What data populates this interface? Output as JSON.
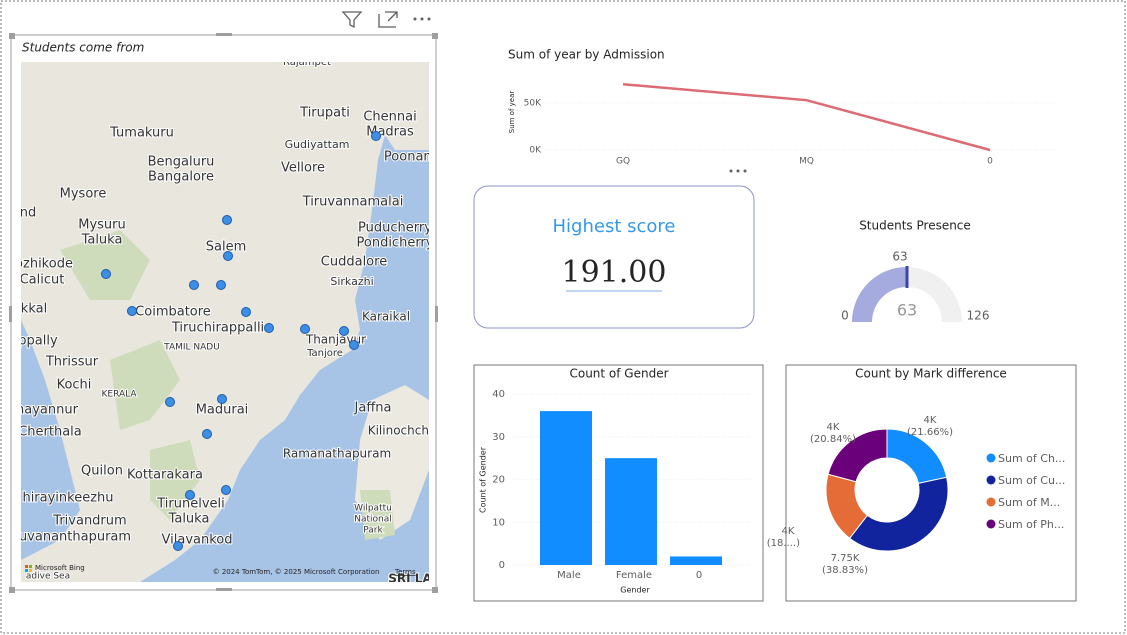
{
  "map": {
    "title": "Students come from",
    "labels": [
      "Rajampet",
      "Tirupati",
      "Chennai",
      "Madras",
      "Poonam",
      "Tumakuru",
      "Gudiyattam",
      "Bengaluru",
      "Bangalore",
      "Vellore",
      "Mysore",
      "Tiruvannamalai",
      "nd",
      "Mysuru",
      "Taluka",
      "Puducherry",
      "Salem",
      "Pondicherry",
      "ozhikode",
      "Cuddalore",
      "Calicut",
      "Sirkazhi",
      "Coimbatore",
      "kkal",
      "Karaikal",
      "Tiruchirappalli",
      "Thanjavur",
      "ppally",
      "TAMIL NADU",
      "Tanjore",
      "Thrissur",
      "Kochi",
      "KERALA",
      "nayannur",
      "Madurai",
      "Jaffna",
      "Cherthala",
      "Kilinochchi",
      "Ramanathapuram",
      "Quilon",
      "Kottarakara",
      "hirayinkeezhu",
      "Tirunelveli",
      "Taluka",
      "Wilpattu",
      "National",
      "Park",
      "Trivandrum",
      "uvananthapuram",
      "Vilavankod",
      "adive Sea",
      "SRI LA"
    ],
    "logo": "Microsoft Bing",
    "attribution": "© 2024 TomTom, © 2025 Microsoft Corporation",
    "terms": "Terms"
  },
  "card": {
    "label": "Highest score",
    "value": "191.00"
  },
  "chart_data": [
    {
      "type": "line",
      "title": "Sum of year by Admission",
      "y_label": "Sum of year",
      "categories": [
        "GQ",
        "MQ",
        "0"
      ],
      "values": [
        70000,
        53000,
        0
      ],
      "color": "#dc6b74",
      "ylim": [
        0,
        75000
      ],
      "yticks": [
        {
          "value": 0,
          "label": "0K"
        },
        {
          "value": 50000,
          "label": "50K"
        }
      ]
    },
    {
      "type": "gauge",
      "title": "Students Presence",
      "value": 63,
      "min": 0,
      "max": 126,
      "target": 63,
      "color": "#a5aadf",
      "target_color": "#3b46a8"
    },
    {
      "type": "bar",
      "title": "Count of Gender",
      "x_label": "Gender",
      "y_label": "Count of Gender",
      "categories": [
        "Male",
        "Female",
        "0"
      ],
      "values": [
        36,
        25,
        2
      ],
      "color": "#118dff",
      "ylim": [
        0,
        40
      ],
      "yticks": [
        0,
        10,
        20,
        30,
        40
      ]
    },
    {
      "type": "pie",
      "title": "Count by Mark difference",
      "donut": true,
      "categories": [
        "Sum of Ch...",
        "Sum of Cu...",
        "Sum of M...",
        "Sum of Ph..."
      ],
      "values": [
        4323,
        7750,
        3726,
        4160
      ],
      "value_labels": [
        "4K",
        "7.75K",
        "4K",
        "4K"
      ],
      "percent_labels": [
        "(21.66%)",
        "(38.83%)",
        "(18....)",
        "(20.84%)"
      ],
      "colors": [
        "#118dff",
        "#12239e",
        "#e66c37",
        "#6b007b"
      ]
    }
  ]
}
